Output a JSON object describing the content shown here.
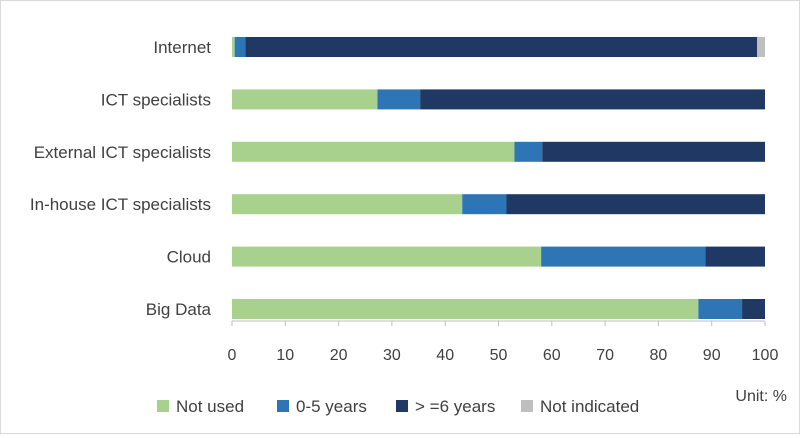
{
  "chart_data": {
    "type": "bar",
    "orientation": "horizontal",
    "stacked": true,
    "title": "",
    "xlabel": "",
    "ylabel": "",
    "unit_label": "Unit: %",
    "xlim": [
      0,
      100
    ],
    "xticks": [
      0,
      10,
      20,
      30,
      40,
      50,
      60,
      70,
      80,
      90,
      100
    ],
    "grid": false,
    "legend_position": "bottom",
    "categories": [
      "Internet",
      "ICT specialists",
      "External ICT specialists",
      "In-house ICT specialists",
      "Cloud",
      "Big Data"
    ],
    "series": [
      {
        "name": "Not used",
        "color": "#a9d18e",
        "values": [
          0.5,
          27.3,
          53.0,
          43.2,
          58.0,
          87.5
        ]
      },
      {
        "name": "0-5 years",
        "color": "#2e75b6",
        "values": [
          2.0,
          8.0,
          5.2,
          8.3,
          30.8,
          8.2
        ]
      },
      {
        "name": "> =6 years",
        "color": "#1f3864",
        "values": [
          96.0,
          64.7,
          41.8,
          48.5,
          11.2,
          4.3
        ]
      },
      {
        "name": "Not indicated",
        "color": "#bfbfbf",
        "values": [
          1.5,
          0,
          0,
          0,
          0,
          0
        ]
      }
    ]
  }
}
